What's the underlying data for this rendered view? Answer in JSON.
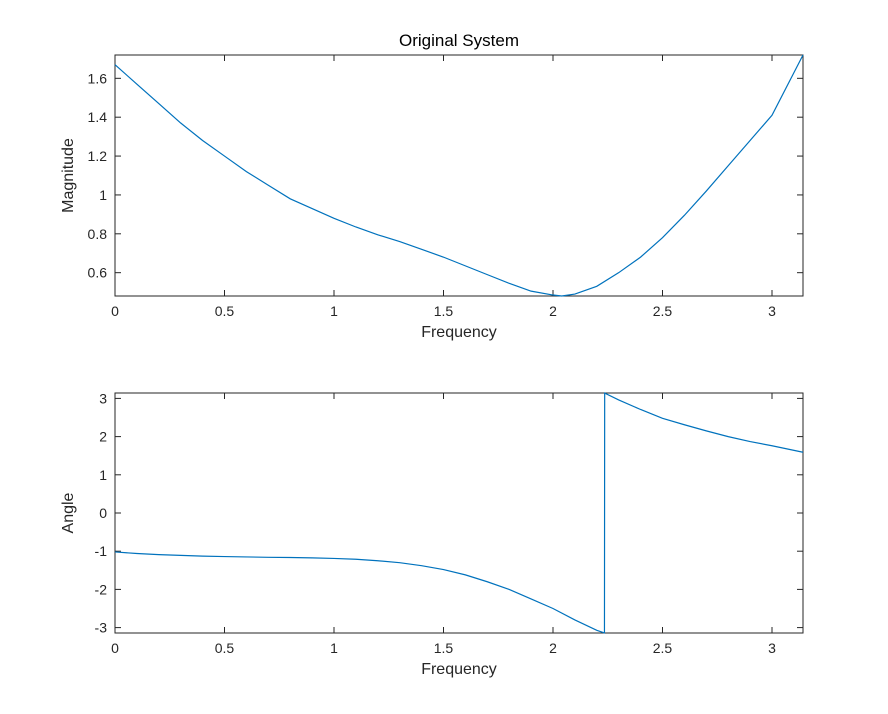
{
  "chart_data": [
    {
      "type": "line",
      "title": "Original System",
      "xlabel": "Frequency",
      "ylabel": "Magnitude",
      "xlim": [
        0,
        3.1416
      ],
      "ylim": [
        0.48,
        1.72
      ],
      "xticks": [
        0,
        0.5,
        1,
        1.5,
        2,
        2.5,
        3
      ],
      "xtick_labels": [
        "0",
        "0.5",
        "1",
        "1.5",
        "2",
        "2.5",
        "3"
      ],
      "yticks": [
        0.6,
        0.8,
        1,
        1.2,
        1.4,
        1.6
      ],
      "ytick_labels": [
        "0.6",
        "0.8",
        "1",
        "1.2",
        "1.4",
        "1.6"
      ],
      "grid": false,
      "color": "#0072BD",
      "series": [
        {
          "x": [
            0,
            0.1,
            0.2,
            0.3,
            0.4,
            0.5,
            0.6,
            0.7,
            0.8,
            0.9,
            1.0,
            1.1,
            1.2,
            1.3,
            1.4,
            1.5,
            1.6,
            1.7,
            1.8,
            1.9,
            2.0,
            2.04,
            2.1,
            2.2,
            2.3,
            2.4,
            2.5,
            2.6,
            2.7,
            2.8,
            2.9,
            3.0,
            3.1416
          ],
          "y": [
            1.67,
            1.57,
            1.47,
            1.37,
            1.28,
            1.2,
            1.12,
            1.05,
            0.98,
            0.93,
            0.88,
            0.835,
            0.795,
            0.76,
            0.72,
            0.68,
            0.635,
            0.59,
            0.545,
            0.505,
            0.485,
            0.48,
            0.49,
            0.53,
            0.6,
            0.68,
            0.78,
            0.895,
            1.02,
            1.15,
            1.28,
            1.41,
            1.72
          ]
        }
      ]
    },
    {
      "type": "line",
      "title": "",
      "xlabel": "Frequency",
      "ylabel": "Angle",
      "xlim": [
        0,
        3.1416
      ],
      "ylim": [
        -3.1416,
        3.1416
      ],
      "xticks": [
        0,
        0.5,
        1,
        1.5,
        2,
        2.5,
        3
      ],
      "xtick_labels": [
        "0",
        "0.5",
        "1",
        "1.5",
        "2",
        "2.5",
        "3"
      ],
      "yticks": [
        -3,
        -2,
        -1,
        0,
        1,
        2,
        3
      ],
      "ytick_labels": [
        "-3",
        "-2",
        "-1",
        "0",
        "1",
        "2",
        "3"
      ],
      "grid": false,
      "color": "#0072BD",
      "series": [
        {
          "x": [
            0,
            0.1,
            0.2,
            0.3,
            0.4,
            0.5,
            0.6,
            0.7,
            0.8,
            0.9,
            1.0,
            1.1,
            1.2,
            1.3,
            1.4,
            1.5,
            1.6,
            1.7,
            1.8,
            1.9,
            2.0,
            2.1,
            2.2,
            2.235,
            2.236,
            2.3,
            2.4,
            2.5,
            2.6,
            2.7,
            2.8,
            2.9,
            3.0,
            3.1416
          ],
          "y": [
            -1.02,
            -1.06,
            -1.09,
            -1.11,
            -1.13,
            -1.14,
            -1.15,
            -1.16,
            -1.165,
            -1.175,
            -1.19,
            -1.21,
            -1.25,
            -1.3,
            -1.38,
            -1.48,
            -1.62,
            -1.8,
            -2.0,
            -2.25,
            -2.5,
            -2.8,
            -3.07,
            -3.14,
            3.14,
            2.96,
            2.71,
            2.48,
            2.31,
            2.15,
            2.0,
            1.87,
            1.76,
            1.59
          ]
        }
      ]
    }
  ]
}
